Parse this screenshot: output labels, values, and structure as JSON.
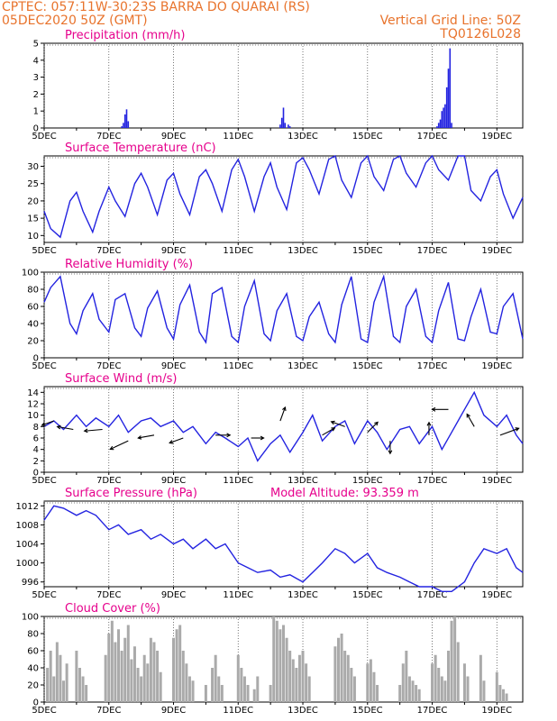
{
  "header": {
    "line1": "CPTEC:   057:11W-30:23S   BARRA DO QUARAI (RS)",
    "line2": "05DEC2020 50Z (GMT)",
    "grid_note": "Vertical Grid Line: 50Z",
    "code": "TQ0126L028"
  },
  "colors": {
    "header": "#e8732c",
    "title": "#e6008c",
    "line": "#2323e0",
    "cloud": "#aaaaaa",
    "wind": "#000000"
  },
  "date_labels": [
    "5DEC",
    "7DEC",
    "9DEC",
    "11DEC",
    "13DEC",
    "15DEC",
    "17DEC",
    "19DEC"
  ],
  "chart_data": [
    {
      "id": "precip",
      "type": "bar",
      "title": "Precipitation (mm/h)",
      "ylim": [
        0,
        5
      ],
      "yticks": [
        0,
        1,
        2,
        3,
        4,
        5
      ],
      "x_unit": "days since 5DEC",
      "x": [
        2.4,
        2.45,
        2.5,
        2.55,
        2.6,
        7.3,
        7.35,
        7.4,
        7.45,
        7.55,
        7.6,
        12.15,
        12.2,
        12.25,
        12.3,
        12.35,
        12.4,
        12.45,
        12.5,
        12.55,
        12.6
      ],
      "values": [
        0.1,
        0.3,
        0.8,
        1.1,
        0.4,
        0.2,
        0.6,
        1.2,
        0.3,
        0.2,
        0.1,
        0.1,
        0.3,
        0.5,
        1.0,
        1.2,
        1.4,
        2.4,
        3.5,
        4.7,
        0.3
      ]
    },
    {
      "id": "temp",
      "type": "line",
      "title": "Surface Temperature (nC)",
      "ylim": [
        8,
        33
      ],
      "yticks": [
        10,
        15,
        20,
        25,
        30
      ],
      "x": [
        0,
        0.2,
        0.5,
        0.8,
        1.0,
        1.2,
        1.5,
        1.7,
        2.0,
        2.2,
        2.5,
        2.8,
        3.0,
        3.2,
        3.5,
        3.8,
        4.0,
        4.2,
        4.5,
        4.8,
        5.0,
        5.2,
        5.5,
        5.8,
        6.0,
        6.2,
        6.5,
        6.8,
        7.0,
        7.2,
        7.5,
        7.8,
        8.0,
        8.2,
        8.5,
        8.8,
        9.0,
        9.2,
        9.5,
        9.8,
        10.0,
        10.2,
        10.5,
        10.8,
        11.0,
        11.2,
        11.5,
        11.8,
        12.0,
        12.2,
        12.5,
        12.8,
        13.0,
        13.2,
        13.5,
        13.8,
        14.0,
        14.2,
        14.5,
        14.8
      ],
      "values": [
        17,
        12,
        9.5,
        20,
        22.5,
        17,
        11,
        17,
        24,
        20,
        15.5,
        25,
        28,
        24,
        16,
        26,
        28,
        22,
        16,
        27,
        29,
        25,
        17,
        29,
        32,
        27,
        17,
        27,
        31,
        24,
        17.5,
        31,
        32.5,
        29,
        22,
        32,
        33,
        26,
        21,
        31,
        33,
        27,
        23,
        32,
        33,
        28,
        24,
        31,
        33,
        29,
        26,
        33,
        33,
        23,
        20,
        27,
        29,
        22,
        15,
        21
      ]
    },
    {
      "id": "rh",
      "type": "line",
      "title": "Relative Humidity (%)",
      "ylim": [
        0,
        100
      ],
      "yticks": [
        0,
        20,
        40,
        60,
        80,
        100
      ],
      "x": [
        0,
        0.2,
        0.5,
        0.8,
        1.0,
        1.2,
        1.5,
        1.7,
        2.0,
        2.2,
        2.5,
        2.8,
        3.0,
        3.2,
        3.5,
        3.8,
        4.0,
        4.2,
        4.5,
        4.8,
        5.0,
        5.2,
        5.5,
        5.8,
        6.0,
        6.2,
        6.5,
        6.8,
        7.0,
        7.2,
        7.5,
        7.8,
        8.0,
        8.2,
        8.5,
        8.8,
        9.0,
        9.2,
        9.5,
        9.8,
        10.0,
        10.2,
        10.5,
        10.8,
        11.0,
        11.2,
        11.5,
        11.8,
        12.0,
        12.2,
        12.5,
        12.8,
        13.0,
        13.2,
        13.5,
        13.8,
        14.0,
        14.2,
        14.5,
        14.8
      ],
      "values": [
        65,
        82,
        95,
        40,
        28,
        55,
        75,
        45,
        30,
        68,
        75,
        35,
        25,
        58,
        78,
        35,
        22,
        62,
        85,
        30,
        18,
        75,
        82,
        25,
        18,
        60,
        90,
        28,
        20,
        55,
        75,
        25,
        20,
        48,
        65,
        28,
        18,
        62,
        95,
        22,
        18,
        65,
        95,
        25,
        18,
        60,
        80,
        25,
        18,
        55,
        88,
        22,
        20,
        48,
        80,
        30,
        28,
        60,
        75,
        22
      ]
    },
    {
      "id": "wind",
      "type": "line",
      "title": "Surface Wind (m/s)",
      "ylim": [
        0,
        15
      ],
      "yticks": [
        0,
        2,
        4,
        6,
        8,
        10,
        12,
        14
      ],
      "x": [
        0,
        0.3,
        0.6,
        1.0,
        1.3,
        1.6,
        2.0,
        2.3,
        2.6,
        3.0,
        3.3,
        3.6,
        4.0,
        4.3,
        4.6,
        5.0,
        5.3,
        5.6,
        6.0,
        6.3,
        6.6,
        7.0,
        7.3,
        7.6,
        8.0,
        8.3,
        8.6,
        9.0,
        9.3,
        9.6,
        10.0,
        10.3,
        10.6,
        11.0,
        11.3,
        11.6,
        12.0,
        12.3,
        12.6,
        13.0,
        13.3,
        13.6,
        14.0,
        14.3,
        14.6,
        14.8
      ],
      "values": [
        8,
        9,
        7.5,
        10,
        8,
        9.5,
        8,
        10,
        7,
        9,
        9.5,
        8,
        9,
        7,
        8,
        5,
        7,
        6,
        4.5,
        6,
        2,
        5,
        6.5,
        3.5,
        7,
        10,
        5.5,
        8,
        9,
        5,
        9,
        7,
        4,
        7.5,
        8,
        5,
        8,
        4,
        7,
        11,
        14,
        10,
        8,
        10,
        6.5,
        5
      ]
    },
    {
      "id": "pressure",
      "type": "line",
      "title": "Surface Pressure (hPa)",
      "note": "Model Altitude: 93.359 m",
      "ylim": [
        995,
        1013
      ],
      "yticks": [
        996,
        1000,
        1004,
        1008,
        1012
      ],
      "x": [
        0,
        0.3,
        0.6,
        1.0,
        1.3,
        1.6,
        2.0,
        2.3,
        2.6,
        3.0,
        3.3,
        3.6,
        4.0,
        4.3,
        4.6,
        5.0,
        5.3,
        5.6,
        6.0,
        6.3,
        6.6,
        7.0,
        7.3,
        7.6,
        8.0,
        8.3,
        8.6,
        9.0,
        9.3,
        9.6,
        10.0,
        10.3,
        10.6,
        11.0,
        11.3,
        11.6,
        12.0,
        12.3,
        12.6,
        13.0,
        13.3,
        13.6,
        14.0,
        14.3,
        14.6,
        14.8
      ],
      "values": [
        1009,
        1012,
        1011.5,
        1010,
        1011,
        1010,
        1007,
        1008,
        1006,
        1007,
        1005,
        1006,
        1004,
        1005,
        1003,
        1005,
        1003,
        1004,
        1000,
        999,
        998,
        998.5,
        997,
        997.5,
        996,
        998,
        1000,
        1003,
        1002,
        1000,
        1002,
        999,
        998,
        997,
        996,
        995,
        995,
        994,
        994,
        996,
        1000,
        1003,
        1002,
        1003,
        999,
        998
      ]
    },
    {
      "id": "cloud",
      "type": "bar",
      "title": "Cloud Cover (%)",
      "ylim": [
        0,
        100
      ],
      "yticks": [
        0,
        20,
        40,
        60,
        80,
        100
      ],
      "x": [
        0.1,
        0.2,
        0.3,
        0.4,
        0.5,
        0.6,
        0.7,
        1.0,
        1.1,
        1.2,
        1.3,
        1.9,
        2.0,
        2.1,
        2.2,
        2.3,
        2.4,
        2.5,
        2.6,
        2.7,
        2.8,
        2.9,
        3.0,
        3.1,
        3.2,
        3.3,
        3.4,
        3.5,
        3.6,
        4.0,
        4.1,
        4.2,
        4.3,
        4.4,
        4.5,
        4.6,
        5.0,
        5.2,
        5.3,
        5.4,
        5.5,
        6.0,
        6.1,
        6.2,
        6.3,
        6.5,
        6.6,
        7.0,
        7.1,
        7.2,
        7.3,
        7.4,
        7.5,
        7.6,
        7.7,
        7.8,
        7.9,
        8.0,
        8.1,
        8.2,
        9.0,
        9.1,
        9.2,
        9.3,
        9.4,
        9.5,
        9.6,
        10.0,
        10.1,
        10.2,
        10.3,
        11.0,
        11.1,
        11.2,
        11.3,
        11.4,
        11.5,
        11.6,
        12.0,
        12.1,
        12.2,
        12.3,
        12.4,
        12.5,
        12.6,
        12.7,
        12.8,
        13.0,
        13.1,
        13.5,
        13.6,
        14.0,
        14.1,
        14.2,
        14.3
      ],
      "values": [
        40,
        60,
        30,
        70,
        55,
        25,
        45,
        60,
        40,
        30,
        20,
        55,
        80,
        95,
        70,
        85,
        60,
        75,
        90,
        50,
        65,
        40,
        30,
        55,
        45,
        75,
        70,
        60,
        35,
        75,
        85,
        90,
        60,
        45,
        30,
        25,
        20,
        40,
        55,
        30,
        20,
        55,
        40,
        30,
        20,
        15,
        30,
        20,
        100,
        95,
        85,
        90,
        75,
        60,
        50,
        40,
        55,
        60,
        45,
        30,
        65,
        75,
        80,
        60,
        55,
        40,
        30,
        45,
        50,
        35,
        20,
        20,
        45,
        60,
        30,
        25,
        20,
        15,
        45,
        55,
        40,
        30,
        25,
        60,
        95,
        100,
        70,
        45,
        30,
        55,
        25,
        35,
        20,
        15,
        10
      ]
    }
  ],
  "wind_vectors": [
    {
      "x": 0.3,
      "y": 9,
      "dir_deg": 200,
      "len": 14
    },
    {
      "x": 0.9,
      "y": 7.5,
      "dir_deg": 170,
      "len": 18
    },
    {
      "x": 1.8,
      "y": 7.5,
      "dir_deg": 185,
      "len": 20
    },
    {
      "x": 2.6,
      "y": 5.5,
      "dir_deg": 205,
      "len": 22
    },
    {
      "x": 3.4,
      "y": 6.5,
      "dir_deg": 190,
      "len": 18
    },
    {
      "x": 4.3,
      "y": 6,
      "dir_deg": 200,
      "len": 16
    },
    {
      "x": 5.3,
      "y": 6.5,
      "dir_deg": 0,
      "len": 16
    },
    {
      "x": 6.4,
      "y": 6,
      "dir_deg": 0,
      "len": 14
    },
    {
      "x": 7.3,
      "y": 9,
      "dir_deg": 70,
      "len": 16
    },
    {
      "x": 8.6,
      "y": 6.5,
      "dir_deg": 30,
      "len": 16
    },
    {
      "x": 9.3,
      "y": 8,
      "dir_deg": 160,
      "len": 16
    },
    {
      "x": 10.0,
      "y": 7,
      "dir_deg": 45,
      "len": 16
    },
    {
      "x": 10.7,
      "y": 5.5,
      "dir_deg": 270,
      "len": 14
    },
    {
      "x": 11.9,
      "y": 6.5,
      "dir_deg": 90,
      "len": 14
    },
    {
      "x": 12.5,
      "y": 11,
      "dir_deg": 180,
      "len": 18
    },
    {
      "x": 13.3,
      "y": 8,
      "dir_deg": 120,
      "len": 16
    },
    {
      "x": 14.1,
      "y": 6.5,
      "dir_deg": 20,
      "len": 22
    }
  ]
}
